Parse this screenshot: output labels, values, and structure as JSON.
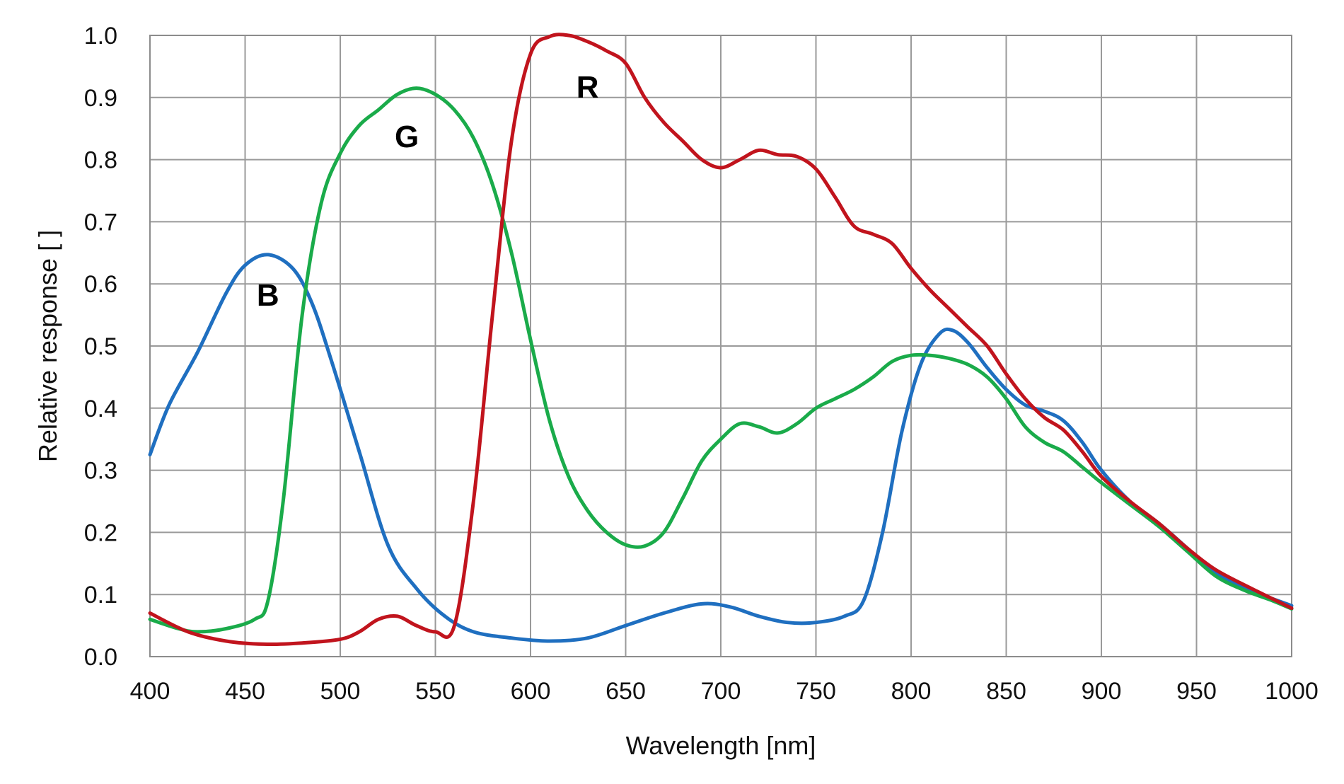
{
  "chart_data": {
    "type": "line",
    "title": "",
    "xlabel": "Wavelength [nm]",
    "ylabel": "Relative response [ ]",
    "xlim": [
      400,
      1000
    ],
    "ylim": [
      0.0,
      1.0
    ],
    "x_ticks": [
      400,
      450,
      500,
      550,
      600,
      650,
      700,
      750,
      800,
      850,
      900,
      950,
      1000
    ],
    "y_ticks": [
      0.0,
      0.1,
      0.2,
      0.3,
      0.4,
      0.5,
      0.6,
      0.7,
      0.8,
      0.9,
      1.0
    ],
    "x_tick_labels": [
      "400",
      "450",
      "500",
      "550",
      "600",
      "650",
      "700",
      "750",
      "800",
      "850",
      "900",
      "950",
      "1000"
    ],
    "y_tick_labels": [
      "0.0",
      "0.1",
      "0.2",
      "0.3",
      "0.4",
      "0.5",
      "0.6",
      "0.7",
      "0.8",
      "0.9",
      "1.0"
    ],
    "grid": true,
    "legend": "none",
    "series": [
      {
        "name": "B",
        "color": "#1f6fc0",
        "label_at": [
          462,
          0.565
        ],
        "points": [
          [
            400,
            0.325
          ],
          [
            410,
            0.405
          ],
          [
            425,
            0.49
          ],
          [
            440,
            0.585
          ],
          [
            450,
            0.63
          ],
          [
            462,
            0.647
          ],
          [
            475,
            0.625
          ],
          [
            485,
            0.57
          ],
          [
            495,
            0.48
          ],
          [
            510,
            0.33
          ],
          [
            525,
            0.18
          ],
          [
            540,
            0.11
          ],
          [
            555,
            0.065
          ],
          [
            570,
            0.04
          ],
          [
            590,
            0.03
          ],
          [
            610,
            0.025
          ],
          [
            630,
            0.03
          ],
          [
            650,
            0.05
          ],
          [
            670,
            0.07
          ],
          [
            690,
            0.085
          ],
          [
            705,
            0.08
          ],
          [
            720,
            0.065
          ],
          [
            735,
            0.055
          ],
          [
            750,
            0.055
          ],
          [
            765,
            0.065
          ],
          [
            775,
            0.09
          ],
          [
            785,
            0.2
          ],
          [
            795,
            0.36
          ],
          [
            805,
            0.47
          ],
          [
            815,
            0.52
          ],
          [
            822,
            0.525
          ],
          [
            830,
            0.505
          ],
          [
            840,
            0.465
          ],
          [
            850,
            0.43
          ],
          [
            860,
            0.405
          ],
          [
            870,
            0.395
          ],
          [
            880,
            0.38
          ],
          [
            890,
            0.345
          ],
          [
            900,
            0.3
          ],
          [
            915,
            0.25
          ],
          [
            930,
            0.215
          ],
          [
            945,
            0.175
          ],
          [
            960,
            0.135
          ],
          [
            980,
            0.105
          ],
          [
            1000,
            0.082
          ]
        ]
      },
      {
        "name": "G",
        "color": "#1aab4a",
        "label_at": [
          535,
          0.82
        ],
        "points": [
          [
            400,
            0.06
          ],
          [
            415,
            0.045
          ],
          [
            425,
            0.04
          ],
          [
            440,
            0.045
          ],
          [
            455,
            0.06
          ],
          [
            462,
            0.09
          ],
          [
            470,
            0.25
          ],
          [
            480,
            0.55
          ],
          [
            490,
            0.73
          ],
          [
            500,
            0.81
          ],
          [
            510,
            0.855
          ],
          [
            520,
            0.88
          ],
          [
            530,
            0.905
          ],
          [
            540,
            0.915
          ],
          [
            550,
            0.905
          ],
          [
            560,
            0.88
          ],
          [
            570,
            0.835
          ],
          [
            580,
            0.76
          ],
          [
            590,
            0.65
          ],
          [
            600,
            0.51
          ],
          [
            610,
            0.38
          ],
          [
            620,
            0.29
          ],
          [
            630,
            0.235
          ],
          [
            640,
            0.2
          ],
          [
            650,
            0.18
          ],
          [
            660,
            0.178
          ],
          [
            670,
            0.2
          ],
          [
            680,
            0.255
          ],
          [
            690,
            0.315
          ],
          [
            700,
            0.35
          ],
          [
            710,
            0.375
          ],
          [
            720,
            0.37
          ],
          [
            730,
            0.36
          ],
          [
            740,
            0.375
          ],
          [
            750,
            0.4
          ],
          [
            760,
            0.415
          ],
          [
            770,
            0.43
          ],
          [
            780,
            0.45
          ],
          [
            790,
            0.475
          ],
          [
            800,
            0.485
          ],
          [
            810,
            0.485
          ],
          [
            820,
            0.48
          ],
          [
            830,
            0.47
          ],
          [
            840,
            0.45
          ],
          [
            850,
            0.415
          ],
          [
            860,
            0.37
          ],
          [
            870,
            0.345
          ],
          [
            880,
            0.33
          ],
          [
            890,
            0.305
          ],
          [
            900,
            0.28
          ],
          [
            915,
            0.245
          ],
          [
            930,
            0.21
          ],
          [
            945,
            0.17
          ],
          [
            960,
            0.13
          ],
          [
            975,
            0.107
          ],
          [
            990,
            0.09
          ],
          [
            1000,
            0.077
          ]
        ]
      },
      {
        "name": "R",
        "color": "#c1141d",
        "label_at": [
          630,
          0.9
        ],
        "points": [
          [
            400,
            0.07
          ],
          [
            420,
            0.04
          ],
          [
            440,
            0.025
          ],
          [
            460,
            0.02
          ],
          [
            480,
            0.022
          ],
          [
            500,
            0.028
          ],
          [
            510,
            0.04
          ],
          [
            520,
            0.06
          ],
          [
            530,
            0.065
          ],
          [
            540,
            0.05
          ],
          [
            550,
            0.04
          ],
          [
            560,
            0.05
          ],
          [
            570,
            0.25
          ],
          [
            580,
            0.55
          ],
          [
            590,
            0.83
          ],
          [
            600,
            0.97
          ],
          [
            610,
            0.998
          ],
          [
            620,
            1.0
          ],
          [
            630,
            0.99
          ],
          [
            640,
            0.975
          ],
          [
            650,
            0.955
          ],
          [
            660,
            0.9
          ],
          [
            670,
            0.86
          ],
          [
            680,
            0.83
          ],
          [
            690,
            0.8
          ],
          [
            700,
            0.787
          ],
          [
            710,
            0.8
          ],
          [
            720,
            0.815
          ],
          [
            730,
            0.808
          ],
          [
            740,
            0.805
          ],
          [
            750,
            0.785
          ],
          [
            760,
            0.74
          ],
          [
            770,
            0.693
          ],
          [
            780,
            0.68
          ],
          [
            790,
            0.665
          ],
          [
            800,
            0.625
          ],
          [
            810,
            0.59
          ],
          [
            820,
            0.56
          ],
          [
            830,
            0.53
          ],
          [
            840,
            0.5
          ],
          [
            850,
            0.455
          ],
          [
            860,
            0.415
          ],
          [
            870,
            0.385
          ],
          [
            880,
            0.365
          ],
          [
            890,
            0.33
          ],
          [
            900,
            0.29
          ],
          [
            915,
            0.25
          ],
          [
            930,
            0.215
          ],
          [
            945,
            0.175
          ],
          [
            960,
            0.14
          ],
          [
            980,
            0.108
          ],
          [
            1000,
            0.078
          ]
        ]
      }
    ]
  }
}
